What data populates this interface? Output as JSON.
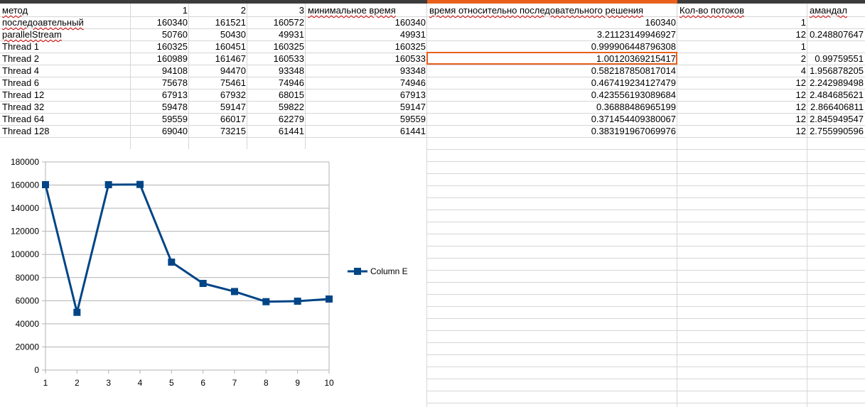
{
  "sheet": {
    "headers": [
      "метод",
      "1",
      "2",
      "3",
      "минимальное время",
      "время относительно последовательного решения",
      "Кол-во потоков",
      "амандал"
    ],
    "rows": [
      [
        "последоавтельный",
        "160340",
        "161521",
        "160572",
        "160340",
        "160340",
        "1",
        ""
      ],
      [
        "parallelStream",
        "50760",
        "50430",
        "49931",
        "49931",
        "3.21123149946927",
        "12",
        "0.248807647"
      ],
      [
        "Thread 1",
        "160325",
        "160451",
        "160325",
        "160325",
        "0.999906448796308",
        "1",
        ""
      ],
      [
        "Thread 2",
        "160989",
        "161467",
        "160533",
        "160533",
        "1.00120369215417",
        "2",
        "0.99759551"
      ],
      [
        "Thread 4",
        "94108",
        "94470",
        "93348",
        "93348",
        "0.582187850817014",
        "4",
        "1.956878205"
      ],
      [
        "Thread 6",
        "75678",
        "75461",
        "74946",
        "74946",
        "0.467419234127479",
        "12",
        "2.242989498"
      ],
      [
        "Thread 12",
        "67913",
        "67932",
        "68015",
        "67913",
        "0.423556193089684",
        "12",
        "2.484685621"
      ],
      [
        "Thread 32",
        "59478",
        "59147",
        "59822",
        "59147",
        "0.36888486965199",
        "12",
        "2.866406811"
      ],
      [
        "Thread 64",
        "59559",
        "66017",
        "62279",
        "59559",
        "0.371454409380067",
        "12",
        "2.845949547"
      ],
      [
        "Thread 128",
        "69040",
        "73215",
        "61441",
        "61441",
        "0.383191967069976",
        "12",
        "2.755990596"
      ]
    ]
  },
  "chart_data": {
    "type": "line",
    "x": [
      1,
      2,
      3,
      4,
      5,
      6,
      7,
      8,
      9,
      10
    ],
    "series": [
      {
        "name": "Column E",
        "values": [
          160340,
          49931,
          160325,
          160533,
          93348,
          74946,
          67913,
          59147,
          59559,
          61441
        ],
        "color": "#004586"
      }
    ],
    "xlim": [
      1,
      10
    ],
    "ylim": [
      0,
      180000
    ],
    "yticks": [
      0,
      20000,
      40000,
      60000,
      80000,
      100000,
      120000,
      140000,
      160000,
      180000
    ],
    "xticks": [
      1,
      2,
      3,
      4,
      5,
      6,
      7,
      8,
      9,
      10
    ],
    "grid": true,
    "legend": "right",
    "marker": "square"
  },
  "colors": {
    "accent": "#e8601c",
    "series": "#004586",
    "grid": "#b3b3b3"
  }
}
